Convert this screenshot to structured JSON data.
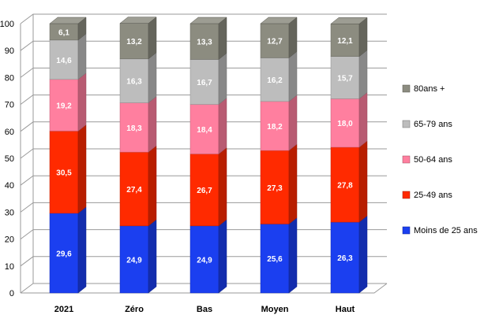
{
  "chart_data": {
    "type": "bar",
    "stacked": true,
    "three_d": true,
    "categories": [
      "2021",
      "Zéro",
      "Bas",
      "Moyen",
      "Haut"
    ],
    "series": [
      {
        "name": "Moins de 25 ans",
        "color": "#1b3ff0",
        "values": [
          29.6,
          24.9,
          24.9,
          25.6,
          26.3
        ]
      },
      {
        "name": "25-49 ans",
        "color": "#ff2a00",
        "values": [
          30.5,
          27.4,
          26.7,
          27.3,
          27.8
        ]
      },
      {
        "name": "50-64 ans",
        "color": "#ff7f9f",
        "values": [
          19.2,
          18.3,
          18.4,
          18.2,
          18.0
        ]
      },
      {
        "name": "65-79 ans",
        "color": "#bdbdbd",
        "values": [
          14.6,
          16.3,
          16.7,
          16.2,
          15.7
        ]
      },
      {
        "name": "80ans +",
        "color": "#8c8c80",
        "values": [
          6.1,
          13.2,
          13.3,
          12.7,
          12.1
        ]
      }
    ],
    "value_labels": [
      [
        "29,6",
        "24,9",
        "24,9",
        "25,6",
        "26,3"
      ],
      [
        "30,5",
        "27,4",
        "26,7",
        "27,3",
        "27,8"
      ],
      [
        "19,2",
        "18,3",
        "18,4",
        "18,2",
        "18,0"
      ],
      [
        "14,6",
        "16,3",
        "16,7",
        "16,2",
        "15,7"
      ],
      [
        "6,1",
        "13,2",
        "13,3",
        "12,7",
        "12,1"
      ]
    ],
    "yticks": [
      "0",
      "10",
      "20",
      "30",
      "40",
      "50",
      "60",
      "70",
      "80",
      "90",
      "100"
    ],
    "ylim": [
      0,
      100
    ],
    "grid": true,
    "legend_position": "right"
  }
}
